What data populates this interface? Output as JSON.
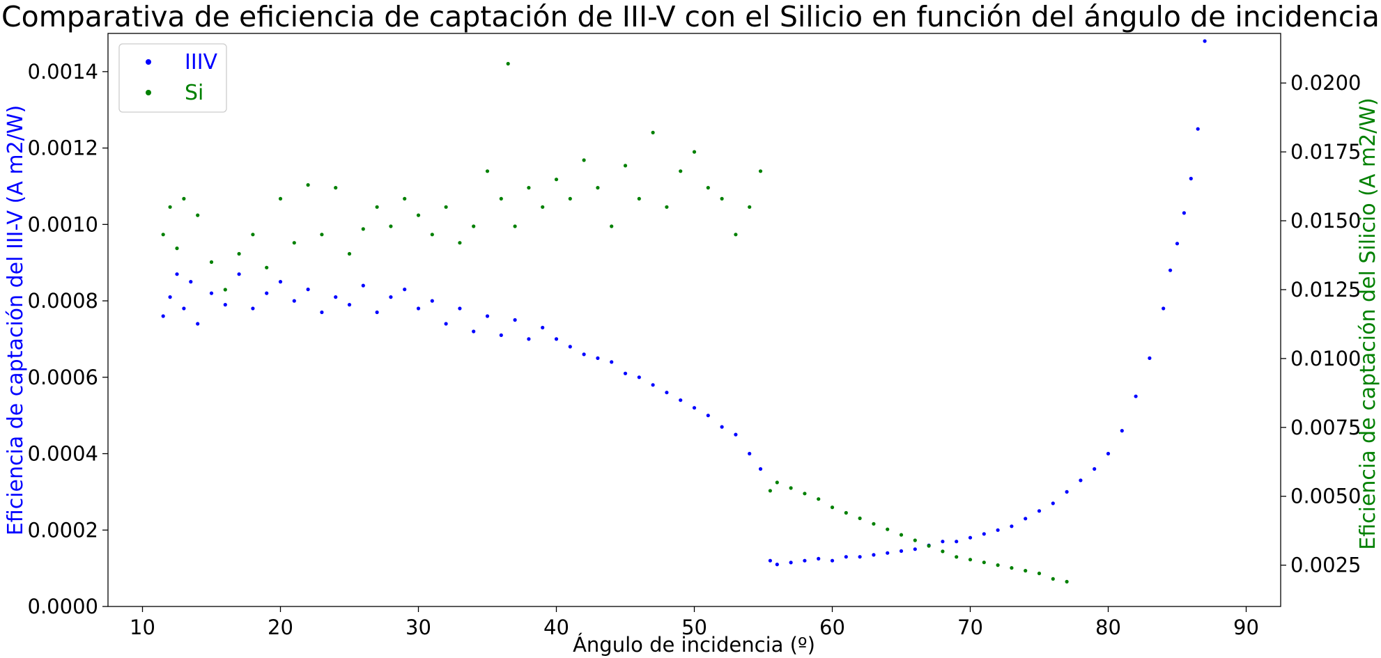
{
  "chart_data": {
    "type": "scatter",
    "title": "Comparativa de eficiencia de captación de III-V con el Silicio en función del ángulo de incidencia",
    "xlabel": "Ángulo de incidencia (º)",
    "ylabel_left": "Eficiencia de captación del III-V (A m2/W)",
    "ylabel_right": "Eficiencia de captación del Silicio (A m2/W)",
    "xlim": [
      7.5,
      92.5
    ],
    "ylim_left": [
      0.0,
      0.0015
    ],
    "ylim_right": [
      0.001,
      0.0218
    ],
    "x_ticks": [
      "10",
      "20",
      "30",
      "40",
      "50",
      "60",
      "70",
      "80",
      "90"
    ],
    "y_left_ticks": [
      "0.0000",
      "0.0002",
      "0.0004",
      "0.0006",
      "0.0008",
      "0.0010",
      "0.0012",
      "0.0014"
    ],
    "y_right_ticks": [
      "0.0025",
      "0.0050",
      "0.0075",
      "0.0100",
      "0.0125",
      "0.0150",
      "0.0175",
      "0.0200"
    ],
    "grid": false,
    "legend_position": "top-left",
    "series": [
      {
        "name": "IIIV",
        "axis": "left",
        "color": "#0000ff",
        "points": [
          [
            11.5,
            0.00076
          ],
          [
            12.0,
            0.00081
          ],
          [
            12.5,
            0.00087
          ],
          [
            13.0,
            0.00078
          ],
          [
            13.5,
            0.00085
          ],
          [
            14.0,
            0.00074
          ],
          [
            15.0,
            0.00082
          ],
          [
            16.0,
            0.00079
          ],
          [
            17.0,
            0.00087
          ],
          [
            18.0,
            0.00078
          ],
          [
            19.0,
            0.00082
          ],
          [
            20.0,
            0.00085
          ],
          [
            21.0,
            0.0008
          ],
          [
            22.0,
            0.00083
          ],
          [
            23.0,
            0.00077
          ],
          [
            24.0,
            0.00081
          ],
          [
            25.0,
            0.00079
          ],
          [
            26.0,
            0.00084
          ],
          [
            27.0,
            0.00077
          ],
          [
            28.0,
            0.00081
          ],
          [
            29.0,
            0.00083
          ],
          [
            30.0,
            0.00078
          ],
          [
            31.0,
            0.0008
          ],
          [
            32.0,
            0.00074
          ],
          [
            33.0,
            0.00078
          ],
          [
            34.0,
            0.00072
          ],
          [
            35.0,
            0.00076
          ],
          [
            36.0,
            0.00071
          ],
          [
            37.0,
            0.00075
          ],
          [
            38.0,
            0.0007
          ],
          [
            39.0,
            0.00073
          ],
          [
            40.0,
            0.0007
          ],
          [
            41.0,
            0.00068
          ],
          [
            42.0,
            0.00066
          ],
          [
            43.0,
            0.00065
          ],
          [
            44.0,
            0.00064
          ],
          [
            45.0,
            0.00061
          ],
          [
            46.0,
            0.0006
          ],
          [
            47.0,
            0.00058
          ],
          [
            48.0,
            0.00056
          ],
          [
            49.0,
            0.00054
          ],
          [
            50.0,
            0.00052
          ],
          [
            51.0,
            0.0005
          ],
          [
            52.0,
            0.00047
          ],
          [
            53.0,
            0.00045
          ],
          [
            54.0,
            0.0004
          ],
          [
            54.8,
            0.00036
          ],
          [
            55.5,
            0.00012
          ],
          [
            56.0,
            0.00011
          ],
          [
            57.0,
            0.000115
          ],
          [
            58.0,
            0.00012
          ],
          [
            59.0,
            0.000125
          ],
          [
            60.0,
            0.00012
          ],
          [
            61.0,
            0.00013
          ],
          [
            62.0,
            0.00013
          ],
          [
            63.0,
            0.000135
          ],
          [
            64.0,
            0.00014
          ],
          [
            65.0,
            0.000145
          ],
          [
            66.0,
            0.00015
          ],
          [
            67.0,
            0.00016
          ],
          [
            68.0,
            0.00017
          ],
          [
            69.0,
            0.00017
          ],
          [
            70.0,
            0.00018
          ],
          [
            71.0,
            0.00019
          ],
          [
            72.0,
            0.0002
          ],
          [
            73.0,
            0.00021
          ],
          [
            74.0,
            0.00023
          ],
          [
            75.0,
            0.00025
          ],
          [
            76.0,
            0.00027
          ],
          [
            77.0,
            0.0003
          ],
          [
            78.0,
            0.00033
          ],
          [
            79.0,
            0.00036
          ],
          [
            80.0,
            0.0004
          ],
          [
            81.0,
            0.00046
          ],
          [
            82.0,
            0.00055
          ],
          [
            83.0,
            0.00065
          ],
          [
            84.0,
            0.00078
          ],
          [
            84.5,
            0.00088
          ],
          [
            85.0,
            0.00095
          ],
          [
            85.5,
            0.00103
          ],
          [
            86.0,
            0.00112
          ],
          [
            86.5,
            0.00125
          ],
          [
            87.0,
            0.00148
          ]
        ]
      },
      {
        "name": "Si",
        "axis": "right",
        "color": "#008000",
        "points": [
          [
            11.5,
            0.0145
          ],
          [
            12.0,
            0.0155
          ],
          [
            12.5,
            0.014
          ],
          [
            13.0,
            0.0158
          ],
          [
            14.0,
            0.0152
          ],
          [
            15.0,
            0.0135
          ],
          [
            16.0,
            0.0125
          ],
          [
            17.0,
            0.0138
          ],
          [
            18.0,
            0.0145
          ],
          [
            19.0,
            0.0133
          ],
          [
            20.0,
            0.0158
          ],
          [
            21.0,
            0.0142
          ],
          [
            22.0,
            0.0163
          ],
          [
            23.0,
            0.0145
          ],
          [
            24.0,
            0.0162
          ],
          [
            25.0,
            0.0138
          ],
          [
            26.0,
            0.0147
          ],
          [
            27.0,
            0.0155
          ],
          [
            28.0,
            0.0148
          ],
          [
            29.0,
            0.0158
          ],
          [
            30.0,
            0.0152
          ],
          [
            31.0,
            0.0145
          ],
          [
            32.0,
            0.0155
          ],
          [
            33.0,
            0.0142
          ],
          [
            34.0,
            0.0148
          ],
          [
            35.0,
            0.0168
          ],
          [
            36.0,
            0.0158
          ],
          [
            36.5,
            0.0207
          ],
          [
            37.0,
            0.0148
          ],
          [
            38.0,
            0.0162
          ],
          [
            39.0,
            0.0155
          ],
          [
            40.0,
            0.0165
          ],
          [
            41.0,
            0.0158
          ],
          [
            42.0,
            0.0172
          ],
          [
            43.0,
            0.0162
          ],
          [
            44.0,
            0.0148
          ],
          [
            45.0,
            0.017
          ],
          [
            46.0,
            0.0158
          ],
          [
            47.0,
            0.0182
          ],
          [
            48.0,
            0.0155
          ],
          [
            49.0,
            0.0168
          ],
          [
            50.0,
            0.0175
          ],
          [
            51.0,
            0.0162
          ],
          [
            52.0,
            0.0158
          ],
          [
            53.0,
            0.0145
          ],
          [
            54.0,
            0.0155
          ],
          [
            54.8,
            0.0168
          ],
          [
            55.5,
            0.0052
          ],
          [
            56.0,
            0.0055
          ],
          [
            57.0,
            0.0053
          ],
          [
            58.0,
            0.0051
          ],
          [
            59.0,
            0.0049
          ],
          [
            60.0,
            0.0046
          ],
          [
            61.0,
            0.0044
          ],
          [
            62.0,
            0.0042
          ],
          [
            63.0,
            0.004
          ],
          [
            64.0,
            0.0038
          ],
          [
            65.0,
            0.0036
          ],
          [
            66.0,
            0.0034
          ],
          [
            67.0,
            0.0032
          ],
          [
            68.0,
            0.003
          ],
          [
            69.0,
            0.0028
          ],
          [
            70.0,
            0.0027
          ],
          [
            71.0,
            0.0026
          ],
          [
            72.0,
            0.0025
          ],
          [
            73.0,
            0.0024
          ],
          [
            74.0,
            0.0023
          ],
          [
            75.0,
            0.0022
          ],
          [
            76.0,
            0.002
          ],
          [
            77.0,
            0.0019
          ]
        ]
      }
    ]
  }
}
